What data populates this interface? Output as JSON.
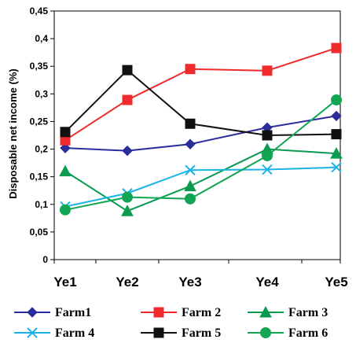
{
  "chart_data": {
    "type": "line",
    "title": "",
    "xlabel": "",
    "ylabel": "Disposable net income (%)",
    "categories": [
      "Ye1",
      "Ye2",
      "Ye3",
      "Ye4",
      "Ye5"
    ],
    "ylim": [
      0,
      0.45
    ],
    "yticks": [
      0,
      0.05,
      0.1,
      0.15,
      0.2,
      0.25,
      0.3,
      0.35,
      0.4,
      0.45
    ],
    "ytick_labels": [
      "0",
      "0,05",
      "0,1",
      "0,15",
      "0,2",
      "0,25",
      "0,3",
      "0,35",
      "0,4",
      "0,45"
    ],
    "grid": false,
    "legend_position": "bottom",
    "series": [
      {
        "name": "Farm1",
        "values": [
          0.202,
          0.197,
          0.209,
          0.239,
          0.26
        ],
        "color": "#2b2d9a",
        "marker": "diamond"
      },
      {
        "name": "Farm 2",
        "values": [
          0.216,
          0.289,
          0.345,
          0.342,
          0.383
        ],
        "color": "#ef2b2d",
        "marker": "square"
      },
      {
        "name": "Farm 3",
        "values": [
          0.16,
          0.088,
          0.133,
          0.2,
          0.192
        ],
        "color": "#0a9a50",
        "marker": "triangle"
      },
      {
        "name": "Farm 4",
        "values": [
          0.096,
          0.12,
          0.162,
          0.163,
          0.167
        ],
        "color": "#1cb4e6",
        "marker": "x"
      },
      {
        "name": "Farm 5",
        "values": [
          0.231,
          0.343,
          0.246,
          0.225,
          0.227
        ],
        "color": "#111111",
        "marker": "square"
      },
      {
        "name": "Farm 6",
        "values": [
          0.09,
          0.113,
          0.11,
          0.188,
          0.289
        ],
        "color": "#12a553",
        "marker": "circle"
      }
    ]
  }
}
